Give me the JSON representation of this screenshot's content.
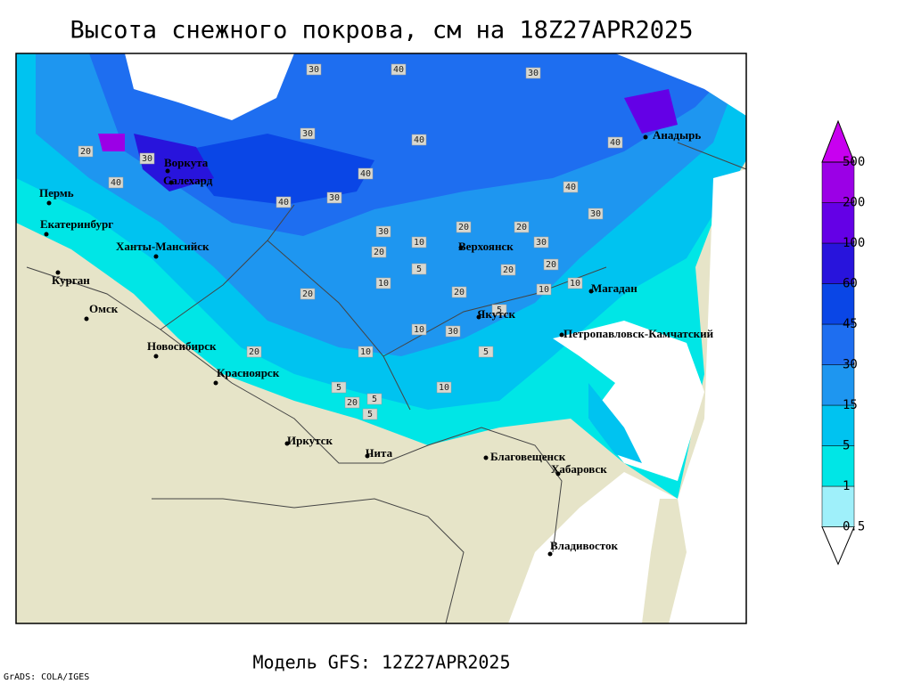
{
  "header": {
    "title": "Высота снежного покрова, см на 18Z27APR2025"
  },
  "footer": {
    "model": "Модель GFS: 12Z27APR2025",
    "credit": "GrADS: COLA/IGES"
  },
  "legend": {
    "levels": [
      0.5,
      1,
      5,
      15,
      30,
      45,
      60,
      100,
      200,
      500
    ],
    "colors": [
      "#ffffff",
      "#9ff0fa",
      "#00e6e6",
      "#00c3f0",
      "#1e96f0",
      "#1e6ef0",
      "#0a46e6",
      "#2814dc",
      "#6400e6",
      "#9b00e6",
      "#c800f0"
    ]
  },
  "cities": [
    "Пермь",
    "Екатеринбург",
    "Ханты-Мансийск",
    "Курган",
    "Омск",
    "Новосибирск",
    "Красноярск",
    "Иркутск",
    "Чита",
    "Благовещенск",
    "Хабаровск",
    "Владивосток",
    "Якутск",
    "Верхоянск",
    "Магадан",
    "Петропавловск-Камчатский",
    "Анадырь",
    "Воркута",
    "Салехард"
  ],
  "contour_labels": [
    30,
    40,
    30,
    30,
    40,
    40,
    20,
    30,
    40,
    40,
    30,
    30,
    20,
    40,
    40,
    30,
    20,
    20,
    10,
    30,
    20,
    5,
    20,
    10,
    20,
    10,
    5,
    10,
    5,
    20,
    10,
    5,
    20,
    5,
    30,
    10,
    5,
    20,
    10
  ]
}
